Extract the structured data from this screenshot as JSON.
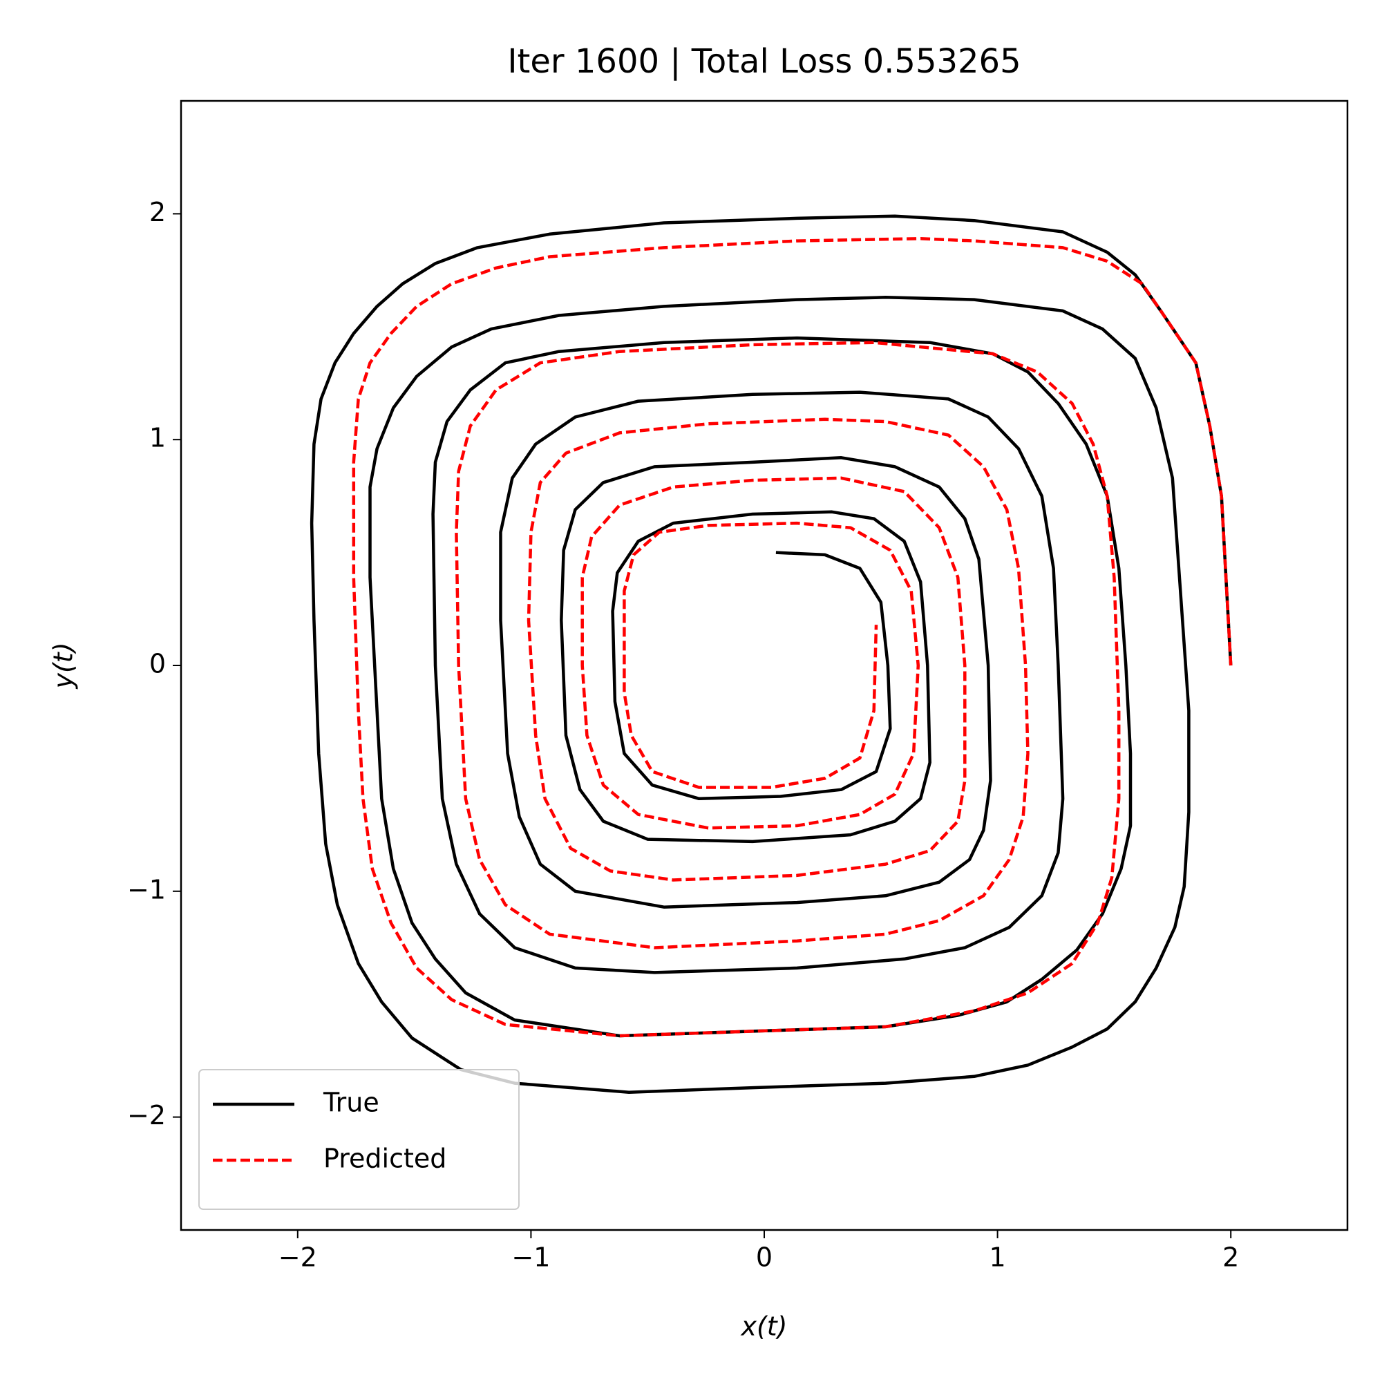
{
  "chart_data": {
    "type": "line",
    "title": "Iter 1600 | Total Loss 0.553265",
    "xlabel": "x(t)",
    "ylabel": "y(t)",
    "xlim": [
      -2.5,
      2.5
    ],
    "ylim": [
      -2.5,
      2.5
    ],
    "xticks": [
      {
        "value": -2,
        "label": "−2"
      },
      {
        "value": -1,
        "label": "−1"
      },
      0,
      1,
      2
    ],
    "yticks": [
      {
        "value": -2,
        "label": "−2"
      },
      {
        "value": -1,
        "label": "−1"
      },
      0,
      1,
      2
    ],
    "grid": false,
    "legend": "lower left",
    "series": [
      {
        "name": "True",
        "color": "#000000",
        "linestyle": "solid",
        "x": [
          2.0,
          1.96,
          1.91,
          1.85,
          1.7,
          1.59,
          1.47,
          1.28,
          0.9,
          0.56,
          0.14,
          -0.43,
          -0.92,
          -1.23,
          -1.41,
          -1.55,
          -1.66,
          -1.76,
          -1.84,
          -1.9,
          -1.93,
          -1.94,
          -1.93,
          -1.91,
          -1.88,
          -1.83,
          -1.74,
          -1.64,
          -1.51,
          -1.3,
          -1.07,
          -0.58,
          -0.05,
          0.52,
          0.9,
          1.13,
          1.32,
          1.47,
          1.59,
          1.68,
          1.76,
          1.8,
          1.82,
          1.82,
          1.78,
          1.75,
          1.68,
          1.59,
          1.45,
          1.28,
          0.9,
          0.52,
          0.14,
          -0.43,
          -0.88,
          -1.17,
          -1.34,
          -1.49,
          -1.59,
          -1.66,
          -1.69,
          -1.69,
          -1.66,
          -1.64,
          -1.59,
          -1.51,
          -1.41,
          -1.28,
          -1.07,
          -0.62,
          -0.05,
          0.52,
          0.83,
          1.04,
          1.19,
          1.34,
          1.45,
          1.53,
          1.57,
          1.57,
          1.55,
          1.52,
          1.47,
          1.38,
          1.26,
          1.13,
          0.98,
          0.71,
          0.14,
          -0.43,
          -0.88,
          -1.11,
          -1.26,
          -1.36,
          -1.41,
          -1.42,
          -1.41,
          -1.38,
          -1.32,
          -1.22,
          -1.07,
          -0.81,
          -0.47,
          0.14,
          0.6,
          0.86,
          1.05,
          1.19,
          1.26,
          1.28,
          1.26,
          1.24,
          1.19,
          1.09,
          0.96,
          0.79,
          0.41,
          -0.05,
          -0.54,
          -0.81,
          -0.98,
          -1.08,
          -1.13,
          -1.13,
          -1.1,
          -1.05,
          -0.96,
          -0.81,
          -0.43,
          0.14,
          0.52,
          0.75,
          0.88,
          0.94,
          0.97,
          0.96,
          0.92,
          0.86,
          0.75,
          0.56,
          0.33,
          -0.05,
          -0.47,
          -0.69,
          -0.81,
          -0.86,
          -0.87,
          -0.85,
          -0.79,
          -0.69,
          -0.5,
          -0.05,
          0.37,
          0.56,
          0.67,
          0.71,
          0.7,
          0.67,
          0.6,
          0.47,
          0.29,
          -0.05,
          -0.39,
          -0.54,
          -0.63,
          -0.65,
          -0.64,
          -0.6,
          -0.48,
          -0.28,
          0.07,
          0.33,
          0.48,
          0.54,
          0.53,
          0.5,
          0.41,
          0.26,
          0.05
        ],
        "values": [
          0,
          0.75,
          1.06,
          1.34,
          1.57,
          1.73,
          1.83,
          1.92,
          1.97,
          1.99,
          1.98,
          1.96,
          1.91,
          1.85,
          1.78,
          1.69,
          1.59,
          1.47,
          1.34,
          1.18,
          0.98,
          0.63,
          0.2,
          -0.39,
          -0.79,
          -1.06,
          -1.32,
          -1.49,
          -1.65,
          -1.79,
          -1.85,
          -1.89,
          -1.87,
          -1.85,
          -1.82,
          -1.77,
          -1.69,
          -1.61,
          -1.49,
          -1.34,
          -1.16,
          -0.98,
          -0.65,
          -0.2,
          0.39,
          0.83,
          1.14,
          1.36,
          1.49,
          1.57,
          1.62,
          1.63,
          1.62,
          1.59,
          1.55,
          1.49,
          1.41,
          1.28,
          1.14,
          0.96,
          0.79,
          0.39,
          -0.2,
          -0.59,
          -0.9,
          -1.14,
          -1.3,
          -1.45,
          -1.57,
          -1.64,
          -1.62,
          -1.6,
          -1.55,
          -1.49,
          -1.39,
          -1.26,
          -1.1,
          -0.9,
          -0.71,
          -0.39,
          0.0,
          0.43,
          0.75,
          0.98,
          1.16,
          1.3,
          1.38,
          1.43,
          1.45,
          1.43,
          1.39,
          1.34,
          1.22,
          1.08,
          0.9,
          0.67,
          0.0,
          -0.59,
          -0.88,
          -1.1,
          -1.25,
          -1.34,
          -1.36,
          -1.34,
          -1.3,
          -1.25,
          -1.16,
          -1.02,
          -0.83,
          -0.59,
          0.0,
          0.43,
          0.75,
          0.96,
          1.1,
          1.18,
          1.21,
          1.2,
          1.17,
          1.1,
          0.98,
          0.83,
          0.59,
          0.2,
          -0.39,
          -0.67,
          -0.88,
          -1.0,
          -1.07,
          -1.05,
          -1.02,
          -0.96,
          -0.86,
          -0.73,
          -0.51,
          0.0,
          0.47,
          0.65,
          0.79,
          0.88,
          0.92,
          0.9,
          0.88,
          0.81,
          0.69,
          0.51,
          0.2,
          -0.31,
          -0.55,
          -0.69,
          -0.77,
          -0.78,
          -0.75,
          -0.69,
          -0.59,
          -0.43,
          0.0,
          0.37,
          0.55,
          0.65,
          0.68,
          0.67,
          0.63,
          0.55,
          0.41,
          0.24,
          -0.16,
          -0.39,
          -0.53,
          -0.59,
          -0.58,
          -0.55,
          -0.47,
          -0.28,
          0.0,
          0.28,
          0.43,
          0.49,
          0.5
        ]
      },
      {
        "name": "Predicted",
        "color": "#ff0000",
        "linestyle": "dashed",
        "x": [
          2.0,
          1.96,
          1.91,
          1.85,
          1.7,
          1.62,
          1.47,
          1.28,
          0.9,
          0.67,
          0.14,
          -0.43,
          -0.92,
          -1.15,
          -1.34,
          -1.49,
          -1.6,
          -1.69,
          -1.74,
          -1.76,
          -1.76,
          -1.74,
          -1.72,
          -1.68,
          -1.6,
          -1.49,
          -1.34,
          -1.11,
          -0.62,
          -0.05,
          0.52,
          0.9,
          1.13,
          1.32,
          1.43,
          1.49,
          1.52,
          1.52,
          1.5,
          1.47,
          1.41,
          1.32,
          1.17,
          0.98,
          0.47,
          -0.05,
          -0.62,
          -0.96,
          -1.15,
          -1.26,
          -1.31,
          -1.32,
          -1.31,
          -1.28,
          -1.22,
          -1.11,
          -0.92,
          -0.47,
          0.14,
          0.52,
          0.75,
          0.94,
          1.05,
          1.11,
          1.13,
          1.12,
          1.09,
          1.04,
          0.94,
          0.79,
          0.52,
          0.26,
          -0.24,
          -0.62,
          -0.85,
          -0.96,
          -1.0,
          -1.01,
          -0.98,
          -0.94,
          -0.83,
          -0.66,
          -0.39,
          0.14,
          0.52,
          0.71,
          0.83,
          0.86,
          0.86,
          0.83,
          0.75,
          0.6,
          0.33,
          -0.05,
          -0.39,
          -0.62,
          -0.74,
          -0.78,
          -0.78,
          -0.76,
          -0.69,
          -0.54,
          -0.24,
          0.14,
          0.41,
          0.56,
          0.64,
          0.66,
          0.63,
          0.54,
          0.37,
          0.14,
          -0.24,
          -0.45,
          -0.56,
          -0.6,
          -0.6,
          -0.57,
          -0.48,
          -0.28,
          0.03,
          0.26,
          0.41,
          0.47,
          0.48
        ],
        "values": [
          0,
          0.75,
          1.06,
          1.34,
          1.57,
          1.69,
          1.79,
          1.85,
          1.88,
          1.89,
          1.88,
          1.85,
          1.81,
          1.76,
          1.69,
          1.59,
          1.47,
          1.34,
          1.18,
          0.9,
          0.39,
          -0.2,
          -0.59,
          -0.9,
          -1.14,
          -1.34,
          -1.48,
          -1.59,
          -1.64,
          -1.62,
          -1.6,
          -1.53,
          -1.45,
          -1.32,
          -1.14,
          -0.94,
          -0.59,
          -0.2,
          0.39,
          0.75,
          0.98,
          1.16,
          1.3,
          1.38,
          1.43,
          1.42,
          1.39,
          1.34,
          1.22,
          1.06,
          0.86,
          0.59,
          0.0,
          -0.59,
          -0.86,
          -1.06,
          -1.19,
          -1.25,
          -1.22,
          -1.19,
          -1.13,
          -1.02,
          -0.86,
          -0.67,
          -0.39,
          0.0,
          0.43,
          0.69,
          0.88,
          1.02,
          1.08,
          1.09,
          1.07,
          1.03,
          0.94,
          0.81,
          0.59,
          0.2,
          -0.31,
          -0.59,
          -0.81,
          -0.91,
          -0.95,
          -0.93,
          -0.88,
          -0.82,
          -0.69,
          -0.51,
          0.0,
          0.39,
          0.61,
          0.77,
          0.83,
          0.82,
          0.79,
          0.71,
          0.57,
          0.39,
          0.0,
          -0.31,
          -0.53,
          -0.66,
          -0.72,
          -0.71,
          -0.66,
          -0.57,
          -0.39,
          0.0,
          0.33,
          0.51,
          0.61,
          0.63,
          0.62,
          0.59,
          0.49,
          0.33,
          -0.12,
          -0.31,
          -0.47,
          -0.54,
          -0.54,
          -0.5,
          -0.41,
          -0.2,
          0.18
        ]
      }
    ]
  }
}
